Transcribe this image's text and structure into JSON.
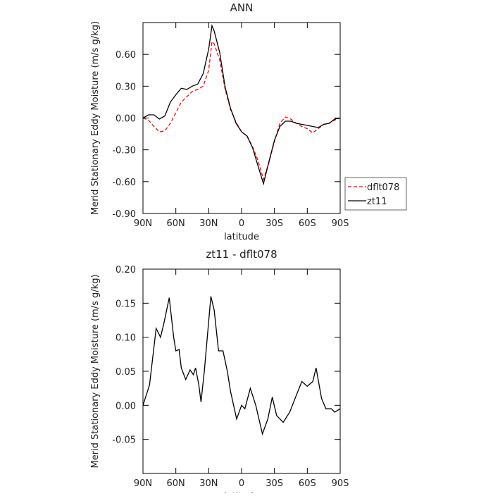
{
  "chart_data": [
    {
      "type": "line",
      "title": "ANN",
      "x_label": "latitude",
      "y_label": "Merid Stationary Eddy Moisture (m/s g/kg)",
      "x": [
        90,
        85,
        80,
        75,
        70,
        65,
        60,
        55,
        50,
        45,
        40,
        35,
        30,
        27,
        25,
        20,
        15,
        10,
        5,
        0,
        -5,
        -10,
        -15,
        -20,
        -25,
        -30,
        -35,
        -40,
        -45,
        -50,
        -55,
        -60,
        -65,
        -70,
        -75,
        -80,
        -85,
        -90
      ],
      "series": [
        {
          "name": "dflt078",
          "color": "#ff0000",
          "dashed": true,
          "values": [
            0,
            -0.02,
            -0.08,
            -0.13,
            -0.12,
            -0.05,
            0.05,
            0.15,
            0.2,
            0.25,
            0.27,
            0.3,
            0.45,
            0.72,
            0.7,
            0.55,
            0.27,
            0.08,
            -0.04,
            -0.13,
            -0.17,
            -0.27,
            -0.4,
            -0.58,
            -0.42,
            -0.22,
            -0.05,
            0.01,
            -0.01,
            -0.05,
            -0.08,
            -0.1,
            -0.14,
            -0.1,
            -0.06,
            -0.05,
            -0.02,
            0
          ]
        },
        {
          "name": "zt11",
          "color": "#000000",
          "dashed": false,
          "values": [
            0,
            0.03,
            0.03,
            -0.01,
            0.02,
            0.15,
            0.22,
            0.28,
            0.27,
            0.3,
            0.32,
            0.42,
            0.65,
            0.87,
            0.82,
            0.62,
            0.29,
            0.09,
            -0.05,
            -0.13,
            -0.17,
            -0.28,
            -0.45,
            -0.62,
            -0.41,
            -0.21,
            -0.08,
            -0.03,
            -0.03,
            -0.05,
            -0.06,
            -0.07,
            -0.08,
            -0.09,
            -0.06,
            -0.05,
            -0.01,
            0
          ]
        }
      ],
      "xlim": [
        90,
        -90
      ],
      "xticks": [
        {
          "value": 90,
          "label": "90N"
        },
        {
          "value": 60,
          "label": "60N"
        },
        {
          "value": 30,
          "label": "30N"
        },
        0,
        {
          "value": -30,
          "label": "30S"
        },
        {
          "value": -60,
          "label": "60S"
        },
        {
          "value": -90,
          "label": "90S"
        }
      ],
      "ylim": [
        -0.9,
        0.9
      ],
      "yticks": [
        {
          "value": -0.9,
          "label": "-0.90"
        },
        {
          "value": -0.6,
          "label": "-0.60"
        },
        {
          "value": -0.3,
          "label": "-0.30"
        },
        {
          "value": 0,
          "label": "0.00"
        },
        {
          "value": 0.3,
          "label": "0.30"
        },
        {
          "value": 0.6,
          "label": "0.60"
        }
      ],
      "legend": "right"
    },
    {
      "type": "line",
      "title": "zt11 - dflt078",
      "x_label": "latitude",
      "y_label": "Merid Stationary Eddy Moisture (m/s g/kg)",
      "x": [
        90,
        84,
        78,
        74,
        71,
        66,
        62,
        60,
        57,
        55,
        51,
        47,
        44,
        42,
        39,
        37,
        34,
        28,
        25,
        21,
        17,
        13,
        10,
        4.5,
        0,
        -3,
        -8,
        -13,
        -19,
        -24,
        -28,
        -32,
        -38,
        -44,
        -50,
        -55,
        -60,
        -65,
        -68,
        -73,
        -77,
        -82,
        -85,
        -90
      ],
      "values": [
        0,
        0.03,
        0.113,
        0.1,
        0.12,
        0.158,
        0.1,
        0.08,
        0.082,
        0.055,
        0.038,
        0.052,
        0.045,
        0.055,
        0.03,
        0.005,
        0.05,
        0.16,
        0.14,
        0.08,
        0.08,
        0.05,
        0.02,
        -0.02,
        0,
        -0.005,
        0.025,
        0,
        -0.042,
        -0.02,
        0.012,
        -0.015,
        -0.025,
        -0.01,
        0.015,
        0.035,
        0.028,
        0.035,
        0.055,
        0.01,
        -0.005,
        -0.005,
        -0.01,
        -0.005
      ],
      "color": "#000000",
      "xlim": [
        90,
        -90
      ],
      "xticks": [
        {
          "value": 90,
          "label": "90N"
        },
        {
          "value": 60,
          "label": "60N"
        },
        {
          "value": 30,
          "label": "30N"
        },
        0,
        {
          "value": -30,
          "label": "30S"
        },
        {
          "value": -60,
          "label": "60S"
        },
        {
          "value": -90,
          "label": "90S"
        }
      ],
      "ylim": [
        -0.1,
        0.2
      ],
      "yticks": [
        {
          "value": -0.05,
          "label": "-0.05"
        },
        {
          "value": 0,
          "label": "0.00"
        },
        {
          "value": 0.05,
          "label": "0.05"
        },
        {
          "value": 0.1,
          "label": "0.10"
        },
        {
          "value": 0.15,
          "label": "0.15"
        },
        {
          "value": 0.2,
          "label": "0.20"
        }
      ]
    }
  ]
}
